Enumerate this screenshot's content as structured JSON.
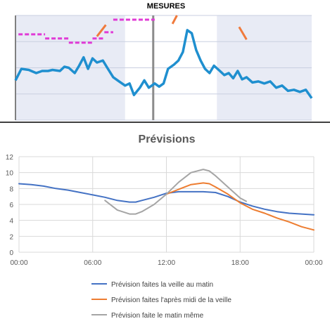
{
  "chart_data": [
    {
      "type": "line",
      "title": "MESURES",
      "xlabel": "",
      "ylabel": "",
      "x_ticks": [],
      "y_ticks": [],
      "ylim": [
        0,
        100
      ],
      "grid": true,
      "legend": "none",
      "shaded_bands": [
        [
          0.0,
          0.37
        ],
        [
          0.68,
          1.0
        ]
      ],
      "event_markers": [
        0.465
      ],
      "series": [
        {
          "name": "",
          "color": "#1f8fcf",
          "points": [
            [
              0.0,
              38.0
            ],
            [
              0.02,
              49.0
            ],
            [
              0.045,
              48.0
            ],
            [
              0.07,
              45.0
            ],
            [
              0.09,
              47.0
            ],
            [
              0.11,
              47.0
            ],
            [
              0.125,
              48.0
            ],
            [
              0.15,
              47.0
            ],
            [
              0.165,
              51.0
            ],
            [
              0.18,
              50.0
            ],
            [
              0.2,
              45.0
            ],
            [
              0.215,
              52.0
            ],
            [
              0.23,
              60.0
            ],
            [
              0.245,
              49.0
            ],
            [
              0.26,
              59.0
            ],
            [
              0.275,
              55.0
            ],
            [
              0.295,
              57.0
            ],
            [
              0.31,
              50.0
            ],
            [
              0.33,
              41.0
            ],
            [
              0.35,
              37.0
            ],
            [
              0.37,
              33.0
            ],
            [
              0.385,
              35.0
            ],
            [
              0.4,
              24.0
            ],
            [
              0.42,
              31.0
            ],
            [
              0.435,
              38.0
            ],
            [
              0.45,
              31.0
            ],
            [
              0.47,
              35.0
            ],
            [
              0.485,
              32.0
            ],
            [
              0.5,
              35.0
            ],
            [
              0.515,
              49.0
            ],
            [
              0.535,
              53.0
            ],
            [
              0.55,
              57.0
            ],
            [
              0.565,
              65.0
            ],
            [
              0.58,
              86.0
            ],
            [
              0.595,
              83.0
            ],
            [
              0.61,
              67.0
            ],
            [
              0.625,
              57.0
            ],
            [
              0.64,
              49.0
            ],
            [
              0.655,
              45.0
            ],
            [
              0.67,
              52.0
            ],
            [
              0.69,
              47.0
            ],
            [
              0.705,
              43.0
            ],
            [
              0.72,
              45.0
            ],
            [
              0.735,
              40.0
            ],
            [
              0.75,
              47.0
            ],
            [
              0.765,
              39.0
            ],
            [
              0.78,
              41.0
            ],
            [
              0.8,
              36.0
            ],
            [
              0.82,
              37.0
            ],
            [
              0.84,
              35.0
            ],
            [
              0.86,
              37.0
            ],
            [
              0.88,
              31.0
            ],
            [
              0.9,
              33.0
            ],
            [
              0.92,
              28.0
            ],
            [
              0.94,
              29.0
            ],
            [
              0.96,
              27.0
            ],
            [
              0.98,
              29.0
            ],
            [
              1.0,
              21.0
            ]
          ]
        },
        {
          "name": "",
          "color": "#e03ad6",
          "dashed": true,
          "segments": [
            [
              [
                0.01,
                82.0
              ],
              [
                0.1,
                82.0
              ]
            ],
            [
              [
                0.1,
                78.0
              ],
              [
                0.18,
                78.0
              ]
            ],
            [
              [
                0.18,
                74.0
              ],
              [
                0.26,
                74.0
              ]
            ],
            [
              [
                0.26,
                78.0
              ],
              [
                0.3,
                78.0
              ]
            ],
            [
              [
                0.3,
                84.0
              ],
              [
                0.33,
                84.0
              ]
            ],
            [
              [
                0.33,
                96.0
              ],
              [
                0.47,
                96.0
              ]
            ]
          ]
        },
        {
          "name": "",
          "color": "#f07a3c",
          "segments": [
            [
              [
                0.275,
                80.0
              ],
              [
                0.305,
                91.0
              ]
            ],
            [
              [
                0.53,
                92.0
              ],
              [
                0.545,
                100.0
              ]
            ],
            [
              [
                0.755,
                89.0
              ],
              [
                0.78,
                77.0
              ]
            ]
          ]
        }
      ]
    },
    {
      "type": "line",
      "title": "Prévisions",
      "xlabel": "",
      "ylabel": "",
      "x_ticks": [
        "00:00",
        "06:00",
        "12:00",
        "18:00",
        "00:00"
      ],
      "xlim": [
        0,
        24
      ],
      "y_ticks": [
        "0",
        "2",
        "4",
        "6",
        "8",
        "10",
        "12"
      ],
      "ylim": [
        0,
        12
      ],
      "grid": true,
      "legend": "bottom",
      "series": [
        {
          "name": "Prévision faites la veille au matin",
          "color": "#4472c4",
          "points": [
            [
              0,
              8.6
            ],
            [
              1,
              8.5
            ],
            [
              2,
              8.3
            ],
            [
              3,
              8.0
            ],
            [
              4,
              7.8
            ],
            [
              5,
              7.5
            ],
            [
              6,
              7.2
            ],
            [
              7,
              6.9
            ],
            [
              8,
              6.5
            ],
            [
              9,
              6.3
            ],
            [
              9.5,
              6.3
            ],
            [
              10,
              6.5
            ],
            [
              11,
              6.9
            ],
            [
              12,
              7.4
            ],
            [
              13,
              7.6
            ],
            [
              14,
              7.6
            ],
            [
              15,
              7.6
            ],
            [
              16,
              7.5
            ],
            [
              17,
              7.0
            ],
            [
              18,
              6.3
            ],
            [
              19,
              5.8
            ],
            [
              20,
              5.4
            ],
            [
              21,
              5.1
            ],
            [
              22,
              4.9
            ],
            [
              23,
              4.8
            ],
            [
              24,
              4.7
            ]
          ]
        },
        {
          "name": "Prévision faites l'après midi de la veille",
          "color": "#ed7d31",
          "points": [
            [
              12,
              7.3
            ],
            [
              13,
              7.9
            ],
            [
              14,
              8.5
            ],
            [
              15,
              8.7
            ],
            [
              15.5,
              8.6
            ],
            [
              16,
              8.2
            ],
            [
              17,
              7.3
            ],
            [
              18,
              6.2
            ],
            [
              19,
              5.4
            ],
            [
              20,
              4.9
            ],
            [
              21,
              4.3
            ],
            [
              22,
              3.8
            ],
            [
              23,
              3.2
            ],
            [
              24,
              2.8
            ]
          ]
        },
        {
          "name": "Prévision faite le matin même",
          "color": "#a5a5a5",
          "points": [
            [
              7,
              6.5
            ],
            [
              8,
              5.3
            ],
            [
              9,
              4.8
            ],
            [
              9.5,
              4.8
            ],
            [
              10,
              5.1
            ],
            [
              11,
              6.0
            ],
            [
              12,
              7.3
            ],
            [
              13,
              8.8
            ],
            [
              14,
              10.0
            ],
            [
              15,
              10.4
            ],
            [
              15.5,
              10.2
            ],
            [
              16,
              9.6
            ],
            [
              17,
              8.2
            ],
            [
              18,
              6.8
            ],
            [
              18.5,
              6.4
            ]
          ]
        }
      ]
    }
  ]
}
